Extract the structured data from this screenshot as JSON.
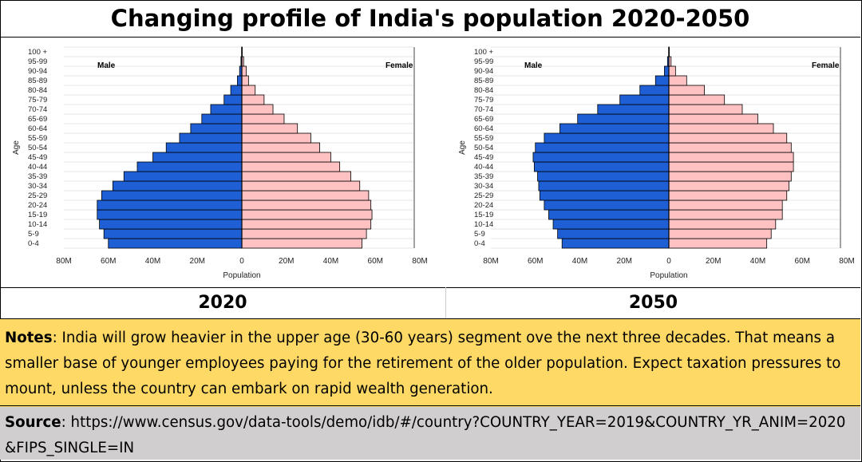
{
  "title": "Changing profile of India's population 2020-2050",
  "chart_data": [
    {
      "type": "bar",
      "orientation": "population-pyramid",
      "year": "2020",
      "left_label": "Male",
      "right_label": "Female",
      "xlabel": "Population",
      "ylabel": "Age",
      "xlim": [
        -80,
        80
      ],
      "units": "millions",
      "x_ticks": [
        "80M",
        "60M",
        "40M",
        "20M",
        "0",
        "20M",
        "40M",
        "60M",
        "80M"
      ],
      "categories": [
        "0-4",
        "5-9",
        "10-14",
        "15-19",
        "20-24",
        "25-29",
        "30-34",
        "35-39",
        "40-44",
        "45-49",
        "50-54",
        "55-59",
        "60-64",
        "65-69",
        "70-74",
        "75-79",
        "80-84",
        "85-89",
        "90-94",
        "95-99",
        "100 +"
      ],
      "series": [
        {
          "name": "Male",
          "values": [
            60,
            62,
            64,
            65,
            65,
            63,
            58,
            53,
            47,
            40,
            34,
            28,
            23,
            18,
            14,
            8,
            5,
            2,
            1,
            0.4,
            0.1
          ]
        },
        {
          "name": "Female",
          "values": [
            54,
            56,
            58,
            58.5,
            58,
            57,
            53,
            49,
            44,
            40,
            35,
            31,
            25,
            19,
            14,
            10,
            6,
            3,
            2,
            0.8,
            0.2
          ]
        }
      ],
      "grid": true
    },
    {
      "type": "bar",
      "orientation": "population-pyramid",
      "year": "2050",
      "left_label": "Male",
      "right_label": "Female",
      "xlabel": "Population",
      "ylabel": "Age",
      "xlim": [
        -80,
        80
      ],
      "units": "millions",
      "x_ticks": [
        "80M",
        "60M",
        "40M",
        "20M",
        "0",
        "20M",
        "40M",
        "60M",
        "80M"
      ],
      "categories": [
        "0-4",
        "5-9",
        "10-14",
        "15-19",
        "20-24",
        "25-29",
        "30-34",
        "35-39",
        "40-44",
        "45-49",
        "50-54",
        "55-59",
        "60-64",
        "65-69",
        "70-74",
        "75-79",
        "80-84",
        "85-89",
        "90-94",
        "95-99",
        "100 +"
      ],
      "series": [
        {
          "name": "Male",
          "values": [
            48,
            50,
            52,
            54,
            56,
            58,
            58.5,
            59,
            60.5,
            61,
            60,
            56,
            49,
            41,
            32,
            22,
            13,
            6,
            2,
            0.6,
            0.1
          ]
        },
        {
          "name": "Female",
          "values": [
            44,
            46,
            48,
            51,
            51,
            53,
            54,
            55,
            56,
            56,
            55,
            53,
            47,
            40,
            33,
            25,
            16,
            8,
            3,
            1,
            0.2
          ]
        }
      ],
      "grid": true
    }
  ],
  "year_labels": [
    "2020",
    "2050"
  ],
  "notes": {
    "label": "Notes",
    "text": ": India will grow heavier in the upper age (30-60 years) segment ove the next three decades.  That means a smaller base of younger employees paying for the retirement of the older population.  Expect taxation pressures to mount, unless the country can embark on rapid wealth generation."
  },
  "source": {
    "label": "Source",
    "text": ": https://www.census.gov/data-tools/demo/idb/#/country?COUNTRY_YEAR=2019&COUNTRY_YR_ANIM=2020&FIPS_SINGLE=IN"
  },
  "colors": {
    "male": "#1f5fd6",
    "female": "#ffc1c1",
    "notes_bg": "#ffd965",
    "source_bg": "#d0cece"
  }
}
